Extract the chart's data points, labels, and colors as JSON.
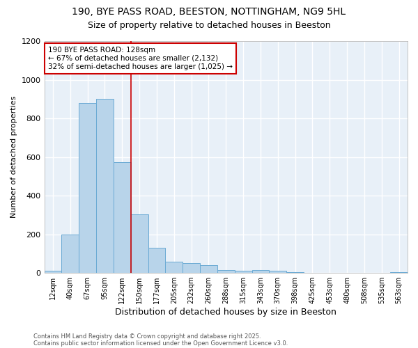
{
  "title1": "190, BYE PASS ROAD, BEESTON, NOTTINGHAM, NG9 5HL",
  "title2": "Size of property relative to detached houses in Beeston",
  "xlabel": "Distribution of detached houses by size in Beeston",
  "ylabel": "Number of detached properties",
  "categories": [
    "12sqm",
    "40sqm",
    "67sqm",
    "95sqm",
    "122sqm",
    "150sqm",
    "177sqm",
    "205sqm",
    "232sqm",
    "260sqm",
    "288sqm",
    "315sqm",
    "343sqm",
    "370sqm",
    "398sqm",
    "425sqm",
    "453sqm",
    "480sqm",
    "508sqm",
    "535sqm",
    "563sqm"
  ],
  "values": [
    10,
    200,
    880,
    900,
    575,
    305,
    130,
    60,
    50,
    40,
    15,
    10,
    15,
    10,
    5,
    2,
    2,
    1,
    2,
    2,
    3
  ],
  "bar_color": "#b8d4ea",
  "bar_edge_color": "#6aaad4",
  "red_line_x": 4.5,
  "annotation_line1": "190 BYE PASS ROAD: 128sqm",
  "annotation_line2": "← 67% of detached houses are smaller (2,132)",
  "annotation_line3": "32% of semi-detached houses are larger (1,025) →",
  "annotation_box_color": "#ffffff",
  "annotation_box_edge": "#cc0000",
  "footer1": "Contains HM Land Registry data © Crown copyright and database right 2025.",
  "footer2": "Contains public sector information licensed under the Open Government Licence v3.0.",
  "ylim": [
    0,
    1200
  ],
  "yticks": [
    0,
    200,
    400,
    600,
    800,
    1000,
    1200
  ],
  "background_color": "#ffffff",
  "plot_bg_color": "#e8f0f8",
  "grid_color": "#ffffff",
  "title1_fontsize": 10,
  "title2_fontsize": 9,
  "xlabel_fontsize": 9,
  "ylabel_fontsize": 8
}
